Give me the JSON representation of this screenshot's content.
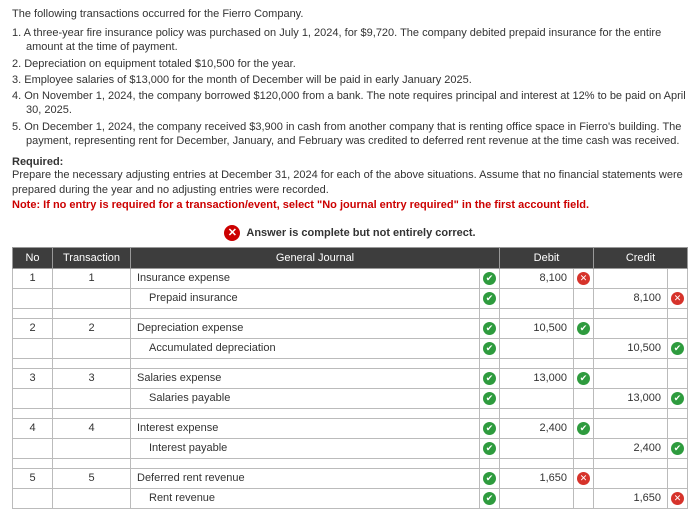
{
  "intro": {
    "lead": "The following transactions occurred for the Fierro Company.",
    "items": [
      "1. A three-year fire insurance policy was purchased on July 1, 2024, for $9,720. The company debited prepaid insurance for the entire amount at the time of payment.",
      "2. Depreciation on equipment totaled $10,500 for the year.",
      "3. Employee salaries of $13,000 for the month of December will be paid in early January 2025.",
      "4. On November 1, 2024, the company borrowed $120,000 from a bank. The note requires principal and interest at 12% to be paid on April 30, 2025.",
      "5. On December 1, 2024, the company received $3,900 in cash from another company that is renting office space in Fierro's building. The payment, representing rent for December, January, and February was credited to deferred rent revenue at the time cash was received."
    ]
  },
  "required": {
    "label": "Required:",
    "text": "Prepare the necessary adjusting entries at December 31, 2024 for each of the above situations. Assume that no financial statements were prepared during the year and no adjusting entries were recorded.",
    "note": "Note: If no entry is required for a transaction/event, select \"No journal entry required\" in the first account field."
  },
  "banner": "Answer is complete but not entirely correct.",
  "headers": {
    "no": "No",
    "tx": "Transaction",
    "gj": "General Journal",
    "debit": "Debit",
    "credit": "Credit"
  },
  "rows": [
    {
      "no": "1",
      "tx": "1",
      "acct": "Insurance expense",
      "mark": "ok",
      "debit": "8,100",
      "dmark": "bad",
      "credit": "",
      "cmark": ""
    },
    {
      "no": "",
      "tx": "",
      "acct": "Prepaid insurance",
      "mark": "ok",
      "debit": "",
      "dmark": "",
      "credit": "8,100",
      "cmark": "bad",
      "indent": true
    },
    {
      "gap": true
    },
    {
      "no": "2",
      "tx": "2",
      "acct": "Depreciation expense",
      "mark": "ok",
      "debit": "10,500",
      "dmark": "ok",
      "credit": "",
      "cmark": ""
    },
    {
      "no": "",
      "tx": "",
      "acct": "Accumulated depreciation",
      "mark": "ok",
      "debit": "",
      "dmark": "",
      "credit": "10,500",
      "cmark": "ok",
      "indent": true
    },
    {
      "gap": true
    },
    {
      "no": "3",
      "tx": "3",
      "acct": "Salaries expense",
      "mark": "ok",
      "debit": "13,000",
      "dmark": "ok",
      "credit": "",
      "cmark": ""
    },
    {
      "no": "",
      "tx": "",
      "acct": "Salaries payable",
      "mark": "ok",
      "debit": "",
      "dmark": "",
      "credit": "13,000",
      "cmark": "ok",
      "indent": true
    },
    {
      "gap": true
    },
    {
      "no": "4",
      "tx": "4",
      "acct": "Interest expense",
      "mark": "ok",
      "debit": "2,400",
      "dmark": "ok",
      "credit": "",
      "cmark": ""
    },
    {
      "no": "",
      "tx": "",
      "acct": "Interest payable",
      "mark": "ok",
      "debit": "",
      "dmark": "",
      "credit": "2,400",
      "cmark": "ok",
      "indent": true
    },
    {
      "gap": true
    },
    {
      "no": "5",
      "tx": "5",
      "acct": "Deferred rent revenue",
      "mark": "ok",
      "debit": "1,650",
      "dmark": "bad",
      "credit": "",
      "cmark": ""
    },
    {
      "no": "",
      "tx": "",
      "acct": "Rent revenue",
      "mark": "ok",
      "debit": "",
      "dmark": "",
      "credit": "1,650",
      "cmark": "bad",
      "indent": true
    }
  ]
}
